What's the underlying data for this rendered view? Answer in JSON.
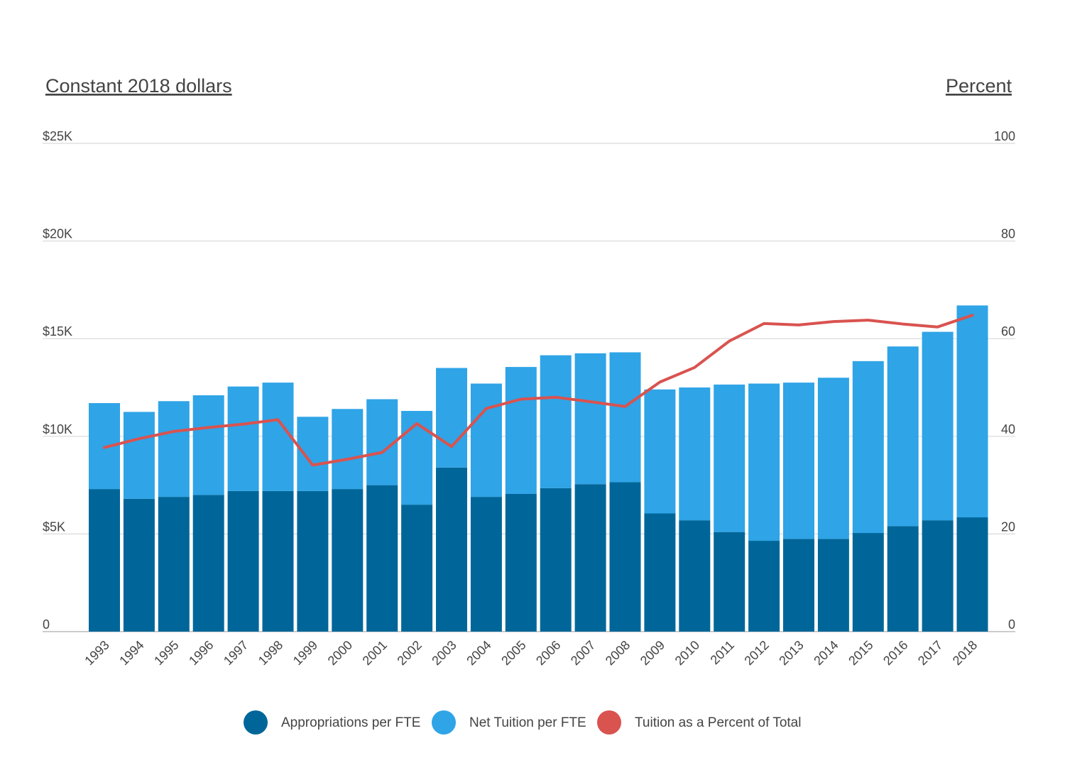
{
  "chart_data": {
    "type": "bar",
    "stacked": true,
    "left_axis_title": "Constant 2018 dollars",
    "right_axis_title": "Percent",
    "left_ticks": [
      "0",
      "$5K",
      "$10K",
      "$15K",
      "$20K",
      "$25K"
    ],
    "right_ticks": [
      "0",
      "20",
      "40",
      "60",
      "80",
      "100"
    ],
    "ylim_left": [
      0,
      25000
    ],
    "ylim_right": [
      0,
      100
    ],
    "grid": true,
    "legend_position": "bottom",
    "categories": [
      "1993",
      "1994",
      "1995",
      "1996",
      "1997",
      "1998",
      "1999",
      "2000",
      "2001",
      "2002",
      "2003",
      "2004",
      "2005",
      "2006",
      "2007",
      "2008",
      "2009",
      "2010",
      "2011",
      "2012",
      "2013",
      "2014",
      "2015",
      "2016",
      "2017",
      "2018"
    ],
    "series": [
      {
        "name": "Appropriations per FTE",
        "type": "bar",
        "axis": "left",
        "color": "#006699",
        "values": [
          7300,
          6800,
          6900,
          7000,
          7200,
          7200,
          7200,
          7300,
          7500,
          6500,
          8400,
          6900,
          7050,
          7350,
          7550,
          7650,
          6050,
          5700,
          5100,
          4650,
          4750,
          4750,
          5050,
          5400,
          5700,
          5850
        ]
      },
      {
        "name": "Net Tuition per FTE",
        "type": "bar",
        "axis": "left",
        "color": "#2fa4e7",
        "values": [
          4400,
          4450,
          4900,
          5100,
          5350,
          5550,
          3800,
          4100,
          4400,
          4800,
          5100,
          5800,
          6500,
          6800,
          6700,
          6650,
          6350,
          6800,
          7550,
          8050,
          8000,
          8250,
          8800,
          9200,
          9650,
          10850
        ]
      },
      {
        "name": "Tuition as a Percent of Total",
        "type": "line",
        "axis": "right",
        "color": "#d9534f",
        "values": [
          37.7,
          39.5,
          41.0,
          41.8,
          42.5,
          43.4,
          34.1,
          35.3,
          36.7,
          42.6,
          37.9,
          45.7,
          47.6,
          48.0,
          47.1,
          46.1,
          51.1,
          54.1,
          59.5,
          63.1,
          62.8,
          63.5,
          63.8,
          63.0,
          62.4,
          64.8
        ]
      }
    ]
  }
}
